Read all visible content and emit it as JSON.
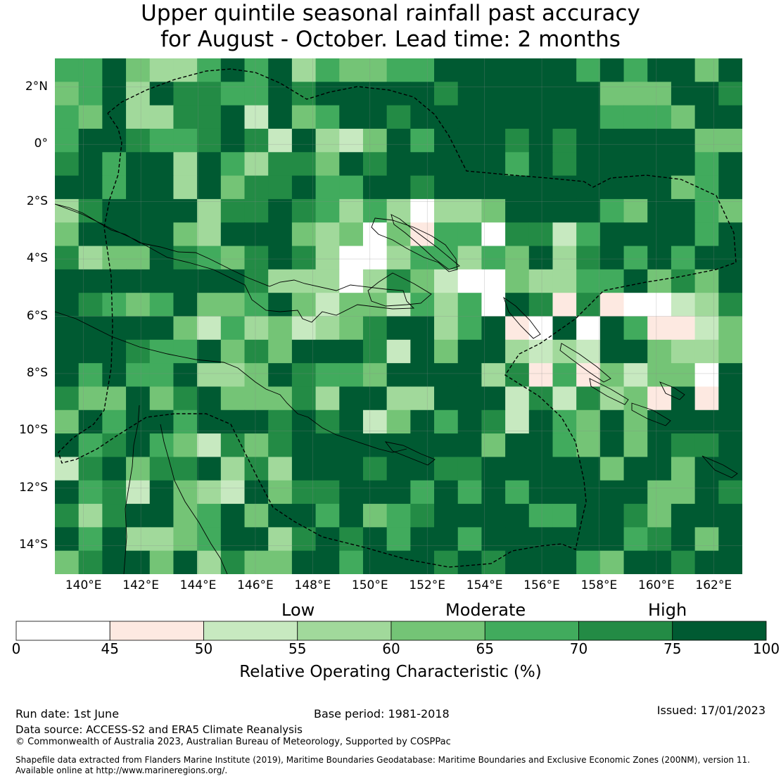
{
  "title_line1": "Upper quintile seasonal rainfall past accuracy",
  "title_line2": "for August - October. Lead time: 2 months",
  "map": {
    "lon_range": [
      139.0,
      163.0
    ],
    "lat_range": [
      -15.0,
      3.0
    ],
    "lat_ticks": [
      {
        "value": 2,
        "label": "2°N"
      },
      {
        "value": 0,
        "label": "0°"
      },
      {
        "value": -2,
        "label": "2°S"
      },
      {
        "value": -4,
        "label": "4°S"
      },
      {
        "value": -6,
        "label": "6°S"
      },
      {
        "value": -8,
        "label": "8°S"
      },
      {
        "value": -10,
        "label": "10°S"
      },
      {
        "value": -12,
        "label": "12°S"
      },
      {
        "value": -14,
        "label": "14°S"
      }
    ],
    "lon_ticks": [
      {
        "value": 140,
        "label": "140°E"
      },
      {
        "value": 142,
        "label": "142°E"
      },
      {
        "value": 144,
        "label": "144°E"
      },
      {
        "value": 146,
        "label": "146°E"
      },
      {
        "value": 148,
        "label": "148°E"
      },
      {
        "value": 150,
        "label": "150°E"
      },
      {
        "value": 152,
        "label": "152°E"
      },
      {
        "value": 154,
        "label": "154°E"
      },
      {
        "value": 156,
        "label": "156°E"
      },
      {
        "value": 158,
        "label": "158°E"
      },
      {
        "value": 160,
        "label": "160°E"
      },
      {
        "value": 162,
        "label": "162°E"
      }
    ]
  },
  "legend": {
    "category_labels": [
      "Low",
      "Moderate",
      "High"
    ],
    "ticks": [
      "0",
      "45",
      "50",
      "55",
      "60",
      "65",
      "70",
      "75",
      "100"
    ],
    "colors": [
      "#ffffff",
      "#fde9e1",
      "#c7e9c0",
      "#a1d99b",
      "#74c476",
      "#41ab5d",
      "#238b45",
      "#005a32"
    ],
    "title": "Relative Operating Characteristic (%)"
  },
  "footer": {
    "run_date": "Run date: 1st June",
    "base_period": "Base period: 1981-2018",
    "issued": "Issued: 17/01/2023",
    "data_source": "Data source: ACCESS-S2 and ERA5 Climate Reanalysis",
    "copyright": "© Commonwealth of Australia 2023, Australian Bureau of Meteorology, Supported by COSPPac",
    "shapefile_line1": "Shapefile data extracted from Flanders Marine Institute (2019), Maritime Boundaries Geodatabase: Maritime Boundaries and Exclusive Economic Zones (200NM), version 11.",
    "shapefile_line2": "Available online at http://www.marineregions.org/."
  }
}
